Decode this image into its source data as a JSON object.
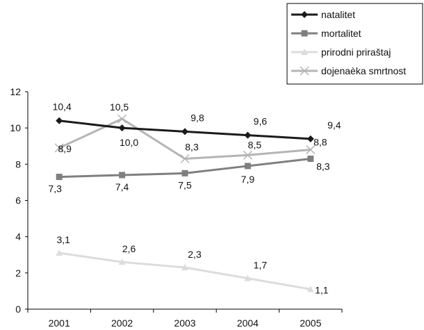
{
  "chart_data": {
    "type": "line",
    "x": [
      "2001",
      "2002",
      "2003",
      "2004",
      "2005"
    ],
    "ylim": [
      0,
      12
    ],
    "yticks": [
      "0",
      "2",
      "4",
      "6",
      "8",
      "10",
      "12"
    ],
    "grid": false,
    "legend_position": "top-right",
    "series": [
      {
        "name": "natalitet",
        "values": [
          10.4,
          10.0,
          9.8,
          9.6,
          9.4
        ],
        "labels": [
          "10,4",
          "10,0",
          "9,8",
          "9,6",
          "9,4"
        ],
        "color": "#1a1a1a",
        "marker": "diamond"
      },
      {
        "name": "mortalitet",
        "values": [
          7.3,
          7.4,
          7.5,
          7.9,
          8.3
        ],
        "labels": [
          "7,3",
          "7,4",
          "7,5",
          "7,9",
          "8,3"
        ],
        "color": "#7f7f7f",
        "marker": "square"
      },
      {
        "name": "prirodni priraštaj",
        "values": [
          3.1,
          2.6,
          2.3,
          1.7,
          1.1
        ],
        "labels": [
          "3,1",
          "2,6",
          "2,3",
          "1,7",
          "1,1"
        ],
        "color": "#dcdcdc",
        "marker": "triangle"
      },
      {
        "name": "dojenaèka smrtnost",
        "values": [
          8.9,
          10.5,
          8.3,
          8.5,
          8.8
        ],
        "labels": [
          "8,9",
          "10,5",
          "8,3",
          "8,5",
          "8,8"
        ],
        "color": "#b4b4b4",
        "marker": "x"
      }
    ]
  }
}
